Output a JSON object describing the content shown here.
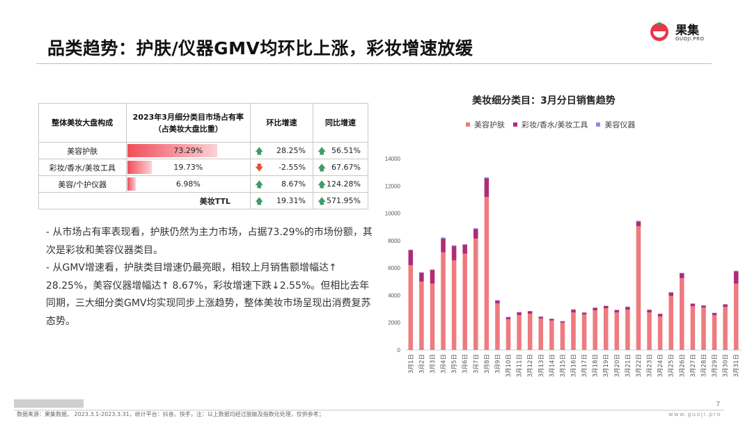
{
  "header": {
    "title": "品类趋势：护肤/仪器GMV均环比上涨，彩妆增速放缓",
    "logo_cn": "果集",
    "logo_en": "GUOJI.PRO"
  },
  "table": {
    "headers": [
      "整体美妆大盘构成",
      "2023年3月细分类目市场占有率\n（占美妆大盘比重）",
      "环比增速",
      "同比增速"
    ],
    "rows": [
      {
        "name": "美容护肤",
        "share": "73.29%",
        "share_value": 73.29,
        "mom": "28.25%",
        "mom_dir": "up",
        "yoy": "56.51%",
        "yoy_dir": "up"
      },
      {
        "name": "彩妆/香水/美妆工具",
        "share": "19.73%",
        "share_value": 19.73,
        "mom": "-2.55%",
        "mom_dir": "down",
        "yoy": "67.67%",
        "yoy_dir": "up"
      },
      {
        "name": "美容/个护仪器",
        "share": "6.98%",
        "share_value": 6.98,
        "mom": "8.67%",
        "mom_dir": "up",
        "yoy": "124.28%",
        "yoy_dir": "up"
      }
    ],
    "total": {
      "name": "美妆TTL",
      "mom": "19.31%",
      "mom_dir": "up",
      "yoy": "571.95%",
      "yoy_dir": "up"
    }
  },
  "bullets": [
    "- 从市场占有率表现看，护肤仍然为主力市场，占据73.29%的市场份额，其次是彩妆和美容仪器类目。",
    "- 从GMV增速看，护肤类目增速仍最亮眼，相较上月销售额增幅达↑ 28.25%，美容仪器增幅达↑ 8.67%，彩妆增速下跌↓2.55%。但相比去年同期，三大细分类GMV均实现同步上涨趋势，整体美妆市场呈现出消费复苏态势。"
  ],
  "colors": {
    "skincare": "#ee7b7f",
    "makeup": "#b02b79",
    "device": "#8b8fd6",
    "accent": "#e8374a"
  },
  "chart_data": {
    "type": "bar",
    "stacked": true,
    "title": "美妆细分类目：3月分日销售趋势",
    "legend_position": "top",
    "categories": [
      "3月1日",
      "3月2日",
      "3月3日",
      "3月4日",
      "3月5日",
      "3月6日",
      "3月7日",
      "3月8日",
      "3月9日",
      "3月10日",
      "3月11日",
      "3月12日",
      "3月13日",
      "3月14日",
      "3月15日",
      "3月16日",
      "3月17日",
      "3月18日",
      "3月19日",
      "3月20日",
      "3月21日",
      "3月22日",
      "3月23日",
      "3月24日",
      "3月25日",
      "3月26日",
      "3月27日",
      "3月28日",
      "3月29日",
      "3月30日",
      "3月31日"
    ],
    "series": [
      {
        "name": "美容护肤",
        "values": [
          6200,
          5000,
          4850,
          7150,
          6550,
          7050,
          8150,
          11200,
          3400,
          2250,
          2550,
          2650,
          2300,
          2150,
          2000,
          2750,
          2600,
          2900,
          3050,
          2750,
          2950,
          9050,
          2750,
          2450,
          3950,
          5250,
          3200,
          3100,
          2550,
          3150,
          4850
        ]
      },
      {
        "name": "彩妆/香水/美妆工具",
        "values": [
          1100,
          650,
          1000,
          1000,
          1050,
          650,
          700,
          1350,
          220,
          150,
          200,
          180,
          130,
          120,
          100,
          200,
          130,
          180,
          170,
          170,
          200,
          350,
          180,
          190,
          250,
          350,
          180,
          150,
          150,
          180,
          900
        ]
      },
      {
        "name": "美容仪器",
        "values": [
          40,
          30,
          40,
          80,
          60,
          40,
          60,
          80,
          20,
          20,
          20,
          20,
          20,
          20,
          15,
          20,
          20,
          20,
          20,
          20,
          20,
          50,
          20,
          20,
          20,
          40,
          20,
          20,
          20,
          20,
          40
        ]
      }
    ],
    "ylim": [
      0,
      14000
    ],
    "yticks": [
      0,
      2000,
      4000,
      6000,
      8000,
      10000,
      12000,
      14000
    ],
    "grid": false
  },
  "footer": {
    "source": "数据来源：果集数据， 2023.3.1-2023.3.31，统计平台：抖音、快手，注：以上数据均经过脱敏及指数化处理，仅供参考；",
    "page": "7",
    "site": "www.guoji.pro"
  }
}
